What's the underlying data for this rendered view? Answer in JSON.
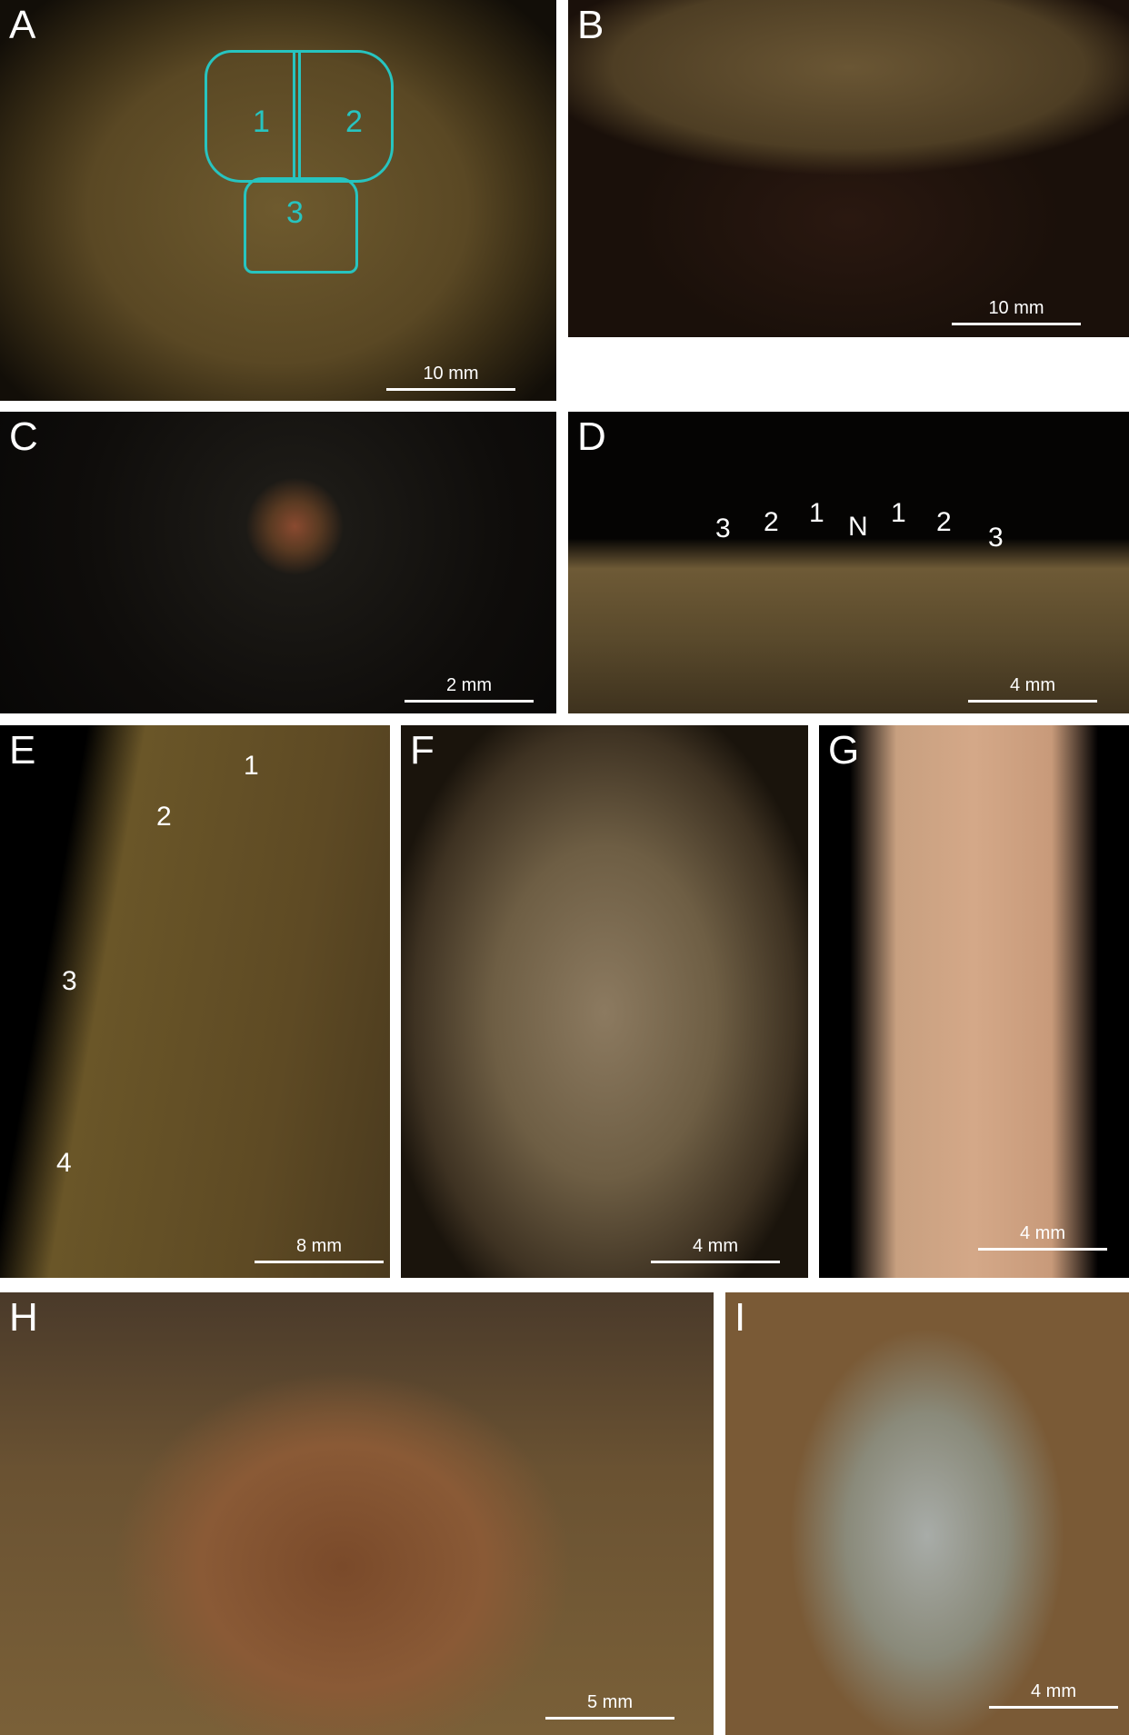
{
  "panels": [
    {
      "label": "A",
      "scale_bar": "10 mm",
      "annotations": [
        "1",
        "2",
        "3"
      ],
      "annotation_color": "#27c4c0"
    },
    {
      "label": "B",
      "scale_bar": "10 mm"
    },
    {
      "label": "C",
      "scale_bar": "2 mm"
    },
    {
      "label": "D",
      "scale_bar": "4 mm",
      "annotations": [
        "3",
        "2",
        "1",
        "N",
        "1",
        "2",
        "3"
      ]
    },
    {
      "label": "E",
      "scale_bar": "8 mm",
      "annotations": [
        "1",
        "2",
        "3",
        "4"
      ]
    },
    {
      "label": "F",
      "scale_bar": "4 mm"
    },
    {
      "label": "G",
      "scale_bar": "4 mm"
    },
    {
      "label": "H",
      "scale_bar": "5 mm"
    },
    {
      "label": "I",
      "scale_bar": "4 mm"
    }
  ]
}
